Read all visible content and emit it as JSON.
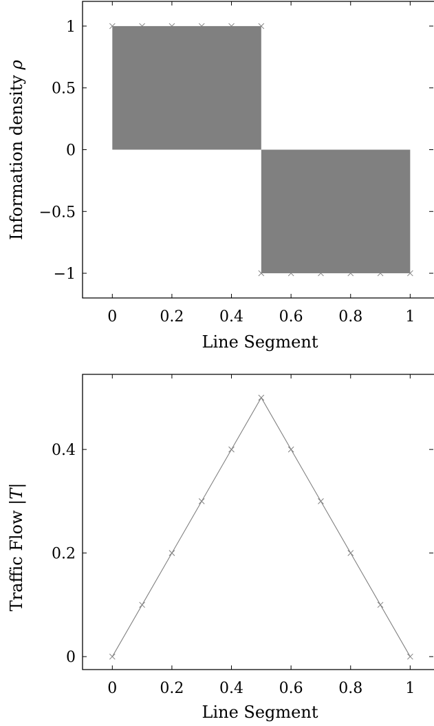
{
  "chart_data": [
    {
      "type": "area",
      "title": "",
      "xlabel": "Line Segment",
      "ylabel": "Information density ρ",
      "xlim": [
        -0.1,
        1.08
      ],
      "ylim": [
        -1.2,
        1.2
      ],
      "xticks": [
        0,
        0.2,
        0.4,
        0.6,
        0.8,
        1
      ],
      "xtick_labels": [
        "0",
        "0.2",
        "0.4",
        "0.6",
        "0.8",
        "1"
      ],
      "yticks": [
        -1,
        -0.5,
        0,
        0.5,
        1
      ],
      "ytick_labels": [
        "−1",
        "−0.5",
        "0",
        "0.5",
        "1"
      ],
      "grid": false,
      "fill_color": "#808080",
      "marker": "x",
      "marker_color": "#808080",
      "series": [
        {
          "x": [
            0,
            0.1,
            0.2,
            0.3,
            0.4,
            0.5,
            0.5,
            0.6,
            0.7,
            0.8,
            0.9,
            1
          ],
          "y": [
            1,
            1,
            1,
            1,
            1,
            1,
            -1,
            -1,
            -1,
            -1,
            -1,
            -1
          ]
        }
      ]
    },
    {
      "type": "line",
      "title": "",
      "xlabel": "Line Segment",
      "ylabel": "Traffic Flow |T|",
      "xlim": [
        -0.1,
        1.08
      ],
      "ylim": [
        -0.025,
        0.545
      ],
      "xticks": [
        0,
        0.2,
        0.4,
        0.6,
        0.8,
        1
      ],
      "xtick_labels": [
        "0",
        "0.2",
        "0.4",
        "0.6",
        "0.8",
        "1"
      ],
      "yticks": [
        0,
        0.2,
        0.4
      ],
      "ytick_labels": [
        "0",
        "0.2",
        "0.4"
      ],
      "grid": false,
      "line_color": "#808080",
      "marker": "x",
      "marker_color": "#808080",
      "series": [
        {
          "x": [
            0,
            0.1,
            0.2,
            0.3,
            0.4,
            0.5,
            0.6,
            0.7,
            0.8,
            0.9,
            1
          ],
          "y": [
            0,
            0.1,
            0.2,
            0.3,
            0.4,
            0.5,
            0.4,
            0.3,
            0.2,
            0.1,
            0
          ]
        }
      ]
    }
  ]
}
